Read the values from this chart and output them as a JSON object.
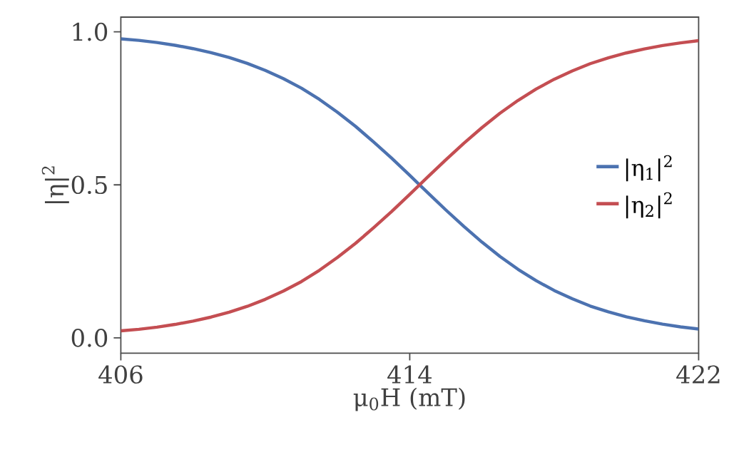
{
  "chart_data": {
    "type": "line",
    "xlabel": "μ$_{0}$H (mT)",
    "ylabel": "|η|$^{2}$",
    "x": [
      406,
      406.5,
      407,
      407.5,
      408,
      408.5,
      409,
      409.5,
      410,
      410.5,
      411,
      411.5,
      412,
      412.5,
      413,
      413.5,
      414,
      414.5,
      415,
      415.5,
      416,
      416.5,
      417,
      417.5,
      418,
      418.5,
      419,
      419.5,
      420,
      420.5,
      421,
      421.5,
      422
    ],
    "series": [
      {
        "name": "|η$_{1}$|$^{2}$",
        "color": "#4c72b0",
        "values": [
          0.977,
          0.972,
          0.965,
          0.956,
          0.945,
          0.932,
          0.916,
          0.897,
          0.874,
          0.847,
          0.816,
          0.779,
          0.737,
          0.691,
          0.64,
          0.587,
          0.531,
          0.474,
          0.418,
          0.364,
          0.313,
          0.266,
          0.224,
          0.187,
          0.155,
          0.128,
          0.104,
          0.085,
          0.069,
          0.056,
          0.045,
          0.036,
          0.029
        ]
      },
      {
        "name": "|η$_{2}$|$^{2}$",
        "color": "#c44e52",
        "values": [
          0.023,
          0.028,
          0.035,
          0.044,
          0.055,
          0.068,
          0.084,
          0.103,
          0.126,
          0.153,
          0.184,
          0.221,
          0.263,
          0.309,
          0.36,
          0.413,
          0.469,
          0.526,
          0.582,
          0.636,
          0.687,
          0.734,
          0.776,
          0.813,
          0.845,
          0.872,
          0.896,
          0.915,
          0.931,
          0.944,
          0.955,
          0.964,
          0.971
        ]
      }
    ],
    "xlim": [
      406,
      422
    ],
    "ylim": [
      -0.05,
      1.048
    ],
    "xticks": [
      406,
      414,
      422
    ],
    "yticks": [
      {
        "value": 0,
        "label": "0.0"
      },
      {
        "value": 0.5,
        "label": "0.5"
      },
      {
        "value": 1,
        "label": "1.0"
      }
    ],
    "grid": false,
    "legend": "right",
    "marker": "none",
    "line_style": "solid"
  }
}
